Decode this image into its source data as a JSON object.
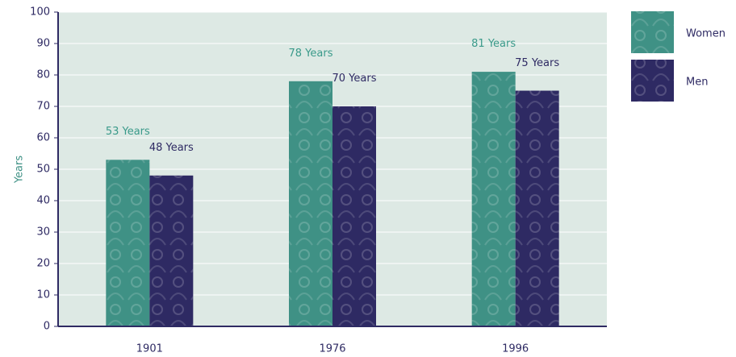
{
  "chart_data": {
    "type": "bar",
    "y_label": "Years",
    "categories": [
      "1901",
      "1976",
      "1996"
    ],
    "series": [
      {
        "name": "Women",
        "color": "#3f9185",
        "values": [
          53,
          78,
          81
        ],
        "value_labels": [
          "53 Years",
          "78 Years",
          "81 Years"
        ]
      },
      {
        "name": "Men",
        "color": "#2e2a63",
        "values": [
          48,
          70,
          75
        ],
        "value_labels": [
          "48 Years",
          "70 Years",
          "75 Years"
        ]
      }
    ],
    "ylim": [
      0,
      100
    ],
    "yticks": [
      0,
      10,
      20,
      30,
      40,
      50,
      60,
      70,
      80,
      90,
      100
    ],
    "grid": true
  }
}
